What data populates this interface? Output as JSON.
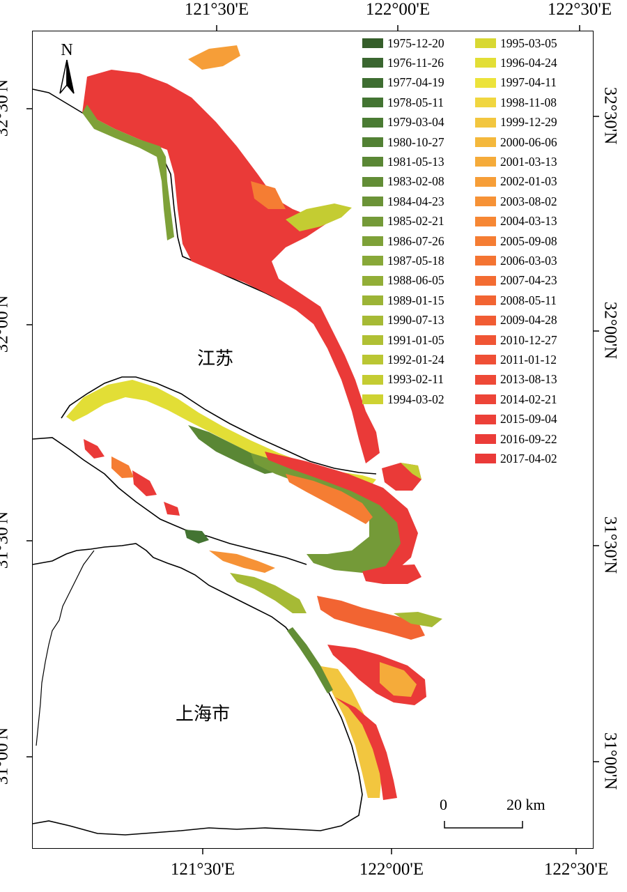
{
  "map": {
    "lon_labels": [
      "121°30'E",
      "122°00'E",
      "122°30'E"
    ],
    "lat_labels": [
      "32°30'N",
      "32°00'N",
      "31°30'N",
      "31°00'N"
    ],
    "north_arrow": {
      "label": "N",
      "icon": "north-arrow-icon"
    },
    "places": {
      "jiangsu": "江苏",
      "shanghai": "上海市"
    },
    "scale_bar": {
      "start": "0",
      "end": "20 km"
    },
    "legend": {
      "column1": [
        {
          "date": "1975-12-20",
          "color": "#355e2a"
        },
        {
          "date": "1976-11-26",
          "color": "#3a6630"
        },
        {
          "date": "1977-04-19",
          "color": "#3e6d31"
        },
        {
          "date": "1978-05-11",
          "color": "#437432"
        },
        {
          "date": "1979-03-04",
          "color": "#4a7b33"
        },
        {
          "date": "1980-10-27",
          "color": "#528134"
        },
        {
          "date": "1981-05-13",
          "color": "#5a8735"
        },
        {
          "date": "1983-02-08",
          "color": "#628d36"
        },
        {
          "date": "1984-04-23",
          "color": "#6b9337"
        },
        {
          "date": "1985-02-21",
          "color": "#749a38"
        },
        {
          "date": "1986-07-26",
          "color": "#7ea138"
        },
        {
          "date": "1987-05-18",
          "color": "#88a838"
        },
        {
          "date": "1988-06-05",
          "color": "#92ae37"
        },
        {
          "date": "1989-01-15",
          "color": "#9cb436"
        },
        {
          "date": "1990-07-13",
          "color": "#a6ba35"
        },
        {
          "date": "1991-01-05",
          "color": "#b0c034"
        },
        {
          "date": "1992-01-24",
          "color": "#bac633"
        },
        {
          "date": "1993-02-11",
          "color": "#c4cc32"
        },
        {
          "date": "1994-03-02",
          "color": "#ced232"
        }
      ],
      "column2": [
        {
          "date": "1995-03-05",
          "color": "#d8d833"
        },
        {
          "date": "1996-04-24",
          "color": "#e2de36"
        },
        {
          "date": "1997-04-11",
          "color": "#ece33b"
        },
        {
          "date": "1998-11-08",
          "color": "#f0d640"
        },
        {
          "date": "1999-12-29",
          "color": "#f2c63f"
        },
        {
          "date": "2000-06-06",
          "color": "#f4b83c"
        },
        {
          "date": "2001-03-13",
          "color": "#f5ab3a"
        },
        {
          "date": "2002-01-03",
          "color": "#f69e38"
        },
        {
          "date": "2003-08-02",
          "color": "#f69236"
        },
        {
          "date": "2004-03-13",
          "color": "#f68734"
        },
        {
          "date": "2005-09-08",
          "color": "#f57d33"
        },
        {
          "date": "2006-03-03",
          "color": "#f47432"
        },
        {
          "date": "2007-04-23",
          "color": "#f36c32"
        },
        {
          "date": "2008-05-11",
          "color": "#f26432"
        },
        {
          "date": "2009-04-28",
          "color": "#f15c33"
        },
        {
          "date": "2010-12-27",
          "color": "#f05534"
        },
        {
          "date": "2011-01-12",
          "color": "#ef4f35"
        },
        {
          "date": "2013-08-13",
          "color": "#ee4936"
        },
        {
          "date": "2014-02-21",
          "color": "#ed4437"
        },
        {
          "date": "2015-09-04",
          "color": "#ec4038"
        },
        {
          "date": "2016-09-22",
          "color": "#eb3c38"
        },
        {
          "date": "2017-04-02",
          "color": "#ea3a38"
        }
      ]
    }
  }
}
